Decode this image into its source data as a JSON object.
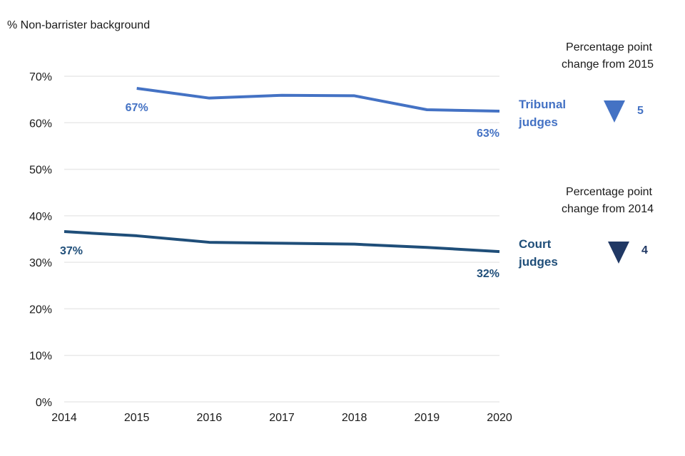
{
  "chart_data": {
    "type": "line",
    "title": "",
    "ylabel": "% Non-barrister background",
    "xlabel": "",
    "x": [
      2014,
      2015,
      2016,
      2017,
      2018,
      2019,
      2020
    ],
    "x_tick_labels": [
      "2014",
      "2015",
      "2016",
      "2017",
      "2018",
      "2019",
      "2020"
    ],
    "ylim": [
      0,
      70
    ],
    "y_ticks": [
      0,
      10,
      20,
      30,
      40,
      50,
      60,
      70
    ],
    "y_tick_labels": [
      "0%",
      "10%",
      "20%",
      "30%",
      "40%",
      "50%",
      "60%",
      "70%"
    ],
    "grid": true,
    "series": [
      {
        "name": "Tribunal judges",
        "name_lines": [
          "Tribunal",
          "judges"
        ],
        "color": "#4472c4",
        "values": [
          null,
          67.4,
          65.3,
          65.9,
          65.8,
          62.8,
          62.5
        ],
        "start_label": "67%",
        "end_label": "63%",
        "change_note": [
          "Percentage point",
          "change from 2015"
        ],
        "change_direction": "down",
        "change_value": "5"
      },
      {
        "name": "Court judges",
        "name_lines": [
          "Court",
          "judges"
        ],
        "color": "#1f4e79",
        "triangle_color": "#203864",
        "values": [
          36.6,
          35.7,
          34.3,
          34.1,
          33.9,
          33.2,
          32.3
        ],
        "start_label": "37%",
        "end_label": "32%",
        "change_note": [
          "Percentage point",
          "change from 2014"
        ],
        "change_direction": "down",
        "change_value": "4"
      }
    ]
  }
}
